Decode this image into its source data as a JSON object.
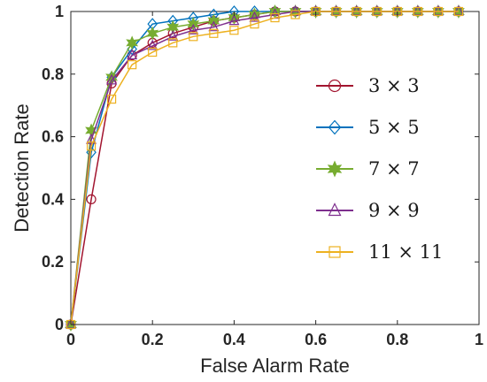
{
  "chart_data": {
    "type": "line",
    "title": "",
    "xlabel": "False Alarm Rate",
    "ylabel": "Detection Rate",
    "xlim": [
      0,
      1
    ],
    "ylim": [
      0,
      1
    ],
    "xticks": [
      "0",
      "0.2",
      "0.4",
      "0.6",
      "0.8",
      "1"
    ],
    "yticks": [
      "0",
      "0.2",
      "0.4",
      "0.6",
      "0.8",
      "1"
    ],
    "grid": false,
    "legend_position": "right",
    "x": [
      0,
      0.05,
      0.1,
      0.15,
      0.2,
      0.25,
      0.3,
      0.35,
      0.4,
      0.45,
      0.5,
      0.55,
      0.6,
      0.65,
      0.7,
      0.75,
      0.8,
      0.85,
      0.9,
      0.95
    ],
    "series": [
      {
        "name": "3 × 3",
        "color": "#a2142f",
        "marker": "circle",
        "values": [
          0,
          0.4,
          0.77,
          0.86,
          0.9,
          0.93,
          0.95,
          0.97,
          0.98,
          0.99,
          1.0,
          1.0,
          1.0,
          1.0,
          1.0,
          1.0,
          1.0,
          1.0,
          1.0,
          1.0
        ]
      },
      {
        "name": "5 × 5",
        "color": "#0072bd",
        "marker": "diamond",
        "values": [
          0,
          0.55,
          0.79,
          0.88,
          0.96,
          0.97,
          0.98,
          0.99,
          1.0,
          1.0,
          1.0,
          1.0,
          1.0,
          1.0,
          1.0,
          1.0,
          1.0,
          1.0,
          1.0,
          1.0
        ]
      },
      {
        "name": "7 × 7",
        "color": "#77ac30",
        "marker": "hexagram",
        "values": [
          0,
          0.62,
          0.79,
          0.9,
          0.93,
          0.95,
          0.96,
          0.97,
          0.98,
          0.99,
          1.0,
          1.0,
          1.0,
          1.0,
          1.0,
          1.0,
          1.0,
          1.0,
          1.0,
          1.0
        ]
      },
      {
        "name": "9 × 9",
        "color": "#7e2f8e",
        "marker": "triangle",
        "values": [
          0,
          0.59,
          0.78,
          0.86,
          0.89,
          0.92,
          0.94,
          0.95,
          0.97,
          0.98,
          0.99,
          1.0,
          1.0,
          1.0,
          1.0,
          1.0,
          1.0,
          1.0,
          1.0,
          1.0
        ]
      },
      {
        "name": "11 × 11",
        "color": "#edb120",
        "marker": "square",
        "values": [
          0,
          0.57,
          0.72,
          0.83,
          0.87,
          0.9,
          0.92,
          0.93,
          0.94,
          0.96,
          0.98,
          0.99,
          1.0,
          1.0,
          1.0,
          1.0,
          1.0,
          1.0,
          1.0,
          1.0
        ]
      }
    ]
  }
}
